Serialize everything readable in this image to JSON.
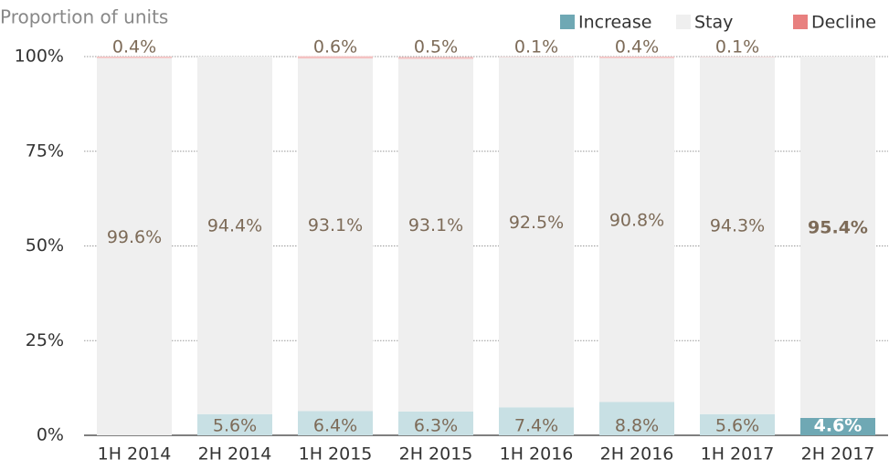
{
  "chart_data": {
    "type": "stacked_bar",
    "y_label": "Proportion of units",
    "categories": [
      "1H 2014",
      "2H 2014",
      "1H 2015",
      "2H 2015",
      "1H 2016",
      "2H 2016",
      "1H 2017",
      "2H 2017"
    ],
    "series": [
      {
        "name": "Increase",
        "color": "#6fa8b4",
        "bar_color": "#c8e0e4",
        "values": [
          0,
          5.6,
          6.4,
          6.3,
          7.4,
          8.8,
          5.6,
          4.6
        ],
        "value_labels": [
          null,
          "5.6%",
          "6.4%",
          "6.3%",
          "7.4%",
          "8.8%",
          "5.6%",
          "4.6%"
        ]
      },
      {
        "name": "Stay",
        "color": "#efefef",
        "bar_color": "#efefef",
        "values": [
          99.6,
          94.4,
          93.1,
          93.1,
          92.5,
          90.8,
          94.3,
          95.4
        ],
        "value_labels": [
          "99.6%",
          "94.4%",
          "93.1%",
          "93.1%",
          "92.5%",
          "90.8%",
          "94.3%",
          "95.4%"
        ]
      },
      {
        "name": "Decline",
        "color": "#e8807f",
        "bar_color": "#f4c2c2",
        "values": [
          0.4,
          0,
          0.6,
          0.5,
          0.1,
          0.4,
          0.1,
          0
        ],
        "value_labels": [
          "0.4%",
          null,
          "0.6%",
          "0.5%",
          "0.1%",
          "0.4%",
          "0.1%",
          null
        ]
      }
    ],
    "highlight_index": 7,
    "ylim": [
      0,
      100
    ],
    "yticks": [
      {
        "value": 0,
        "label": "0%"
      },
      {
        "value": 25,
        "label": "25%"
      },
      {
        "value": 50,
        "label": "50%"
      },
      {
        "value": 75,
        "label": "75%"
      },
      {
        "value": 100,
        "label": "100%"
      }
    ],
    "grid": true,
    "legend": "top-right"
  }
}
